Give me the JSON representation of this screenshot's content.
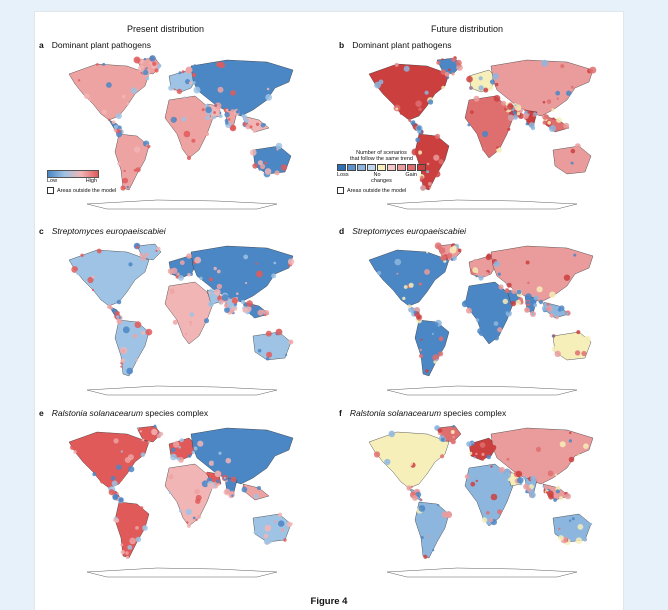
{
  "headers": {
    "present": "Present distribution",
    "future": "Future distribution"
  },
  "panels": [
    {
      "letter": "a",
      "title_main": "Dominant plant pathogens",
      "title_italic": "",
      "title_rest": "",
      "palette": "present"
    },
    {
      "letter": "b",
      "title_main": "Dominant plant pathogens",
      "title_italic": "",
      "title_rest": "",
      "palette": "future"
    },
    {
      "letter": "c",
      "title_main": "",
      "title_italic": "Streptomyces europaeiscabiei",
      "title_rest": "",
      "palette": "present"
    },
    {
      "letter": "d",
      "title_main": "",
      "title_italic": "Streptomyces europaeiscabiei",
      "title_rest": "",
      "palette": "future"
    },
    {
      "letter": "e",
      "title_main": "",
      "title_italic": "Ralstonia solanacearum",
      "title_rest": " species complex",
      "palette": "present"
    },
    {
      "letter": "f",
      "title_main": "",
      "title_italic": "Ralstonia solanacearum",
      "title_rest": " species complex",
      "palette": "future"
    }
  ],
  "legend_present": {
    "low": "Low",
    "high": "High",
    "outside": "Areas outside the model"
  },
  "legend_future": {
    "title_line1": "Number of scenarios",
    "title_line2": "that follow the same trend",
    "loss": "Loss",
    "no_changes_1": "No",
    "no_changes_2": "changes",
    "gain": "Gain",
    "outside": "Areas outside the model",
    "swatches": [
      "#2f6fb6",
      "#5c93cc",
      "#8db6de",
      "#c0d8ee",
      "#f6efb9",
      "#f3c8c8",
      "#ea9c9c",
      "#df6f6f",
      "#cc3f3f"
    ]
  },
  "colors": {
    "high": "#e05a5a",
    "low": "#4b86c5",
    "mid": "#f2b5b5"
  },
  "figure_title": "Figure 4"
}
